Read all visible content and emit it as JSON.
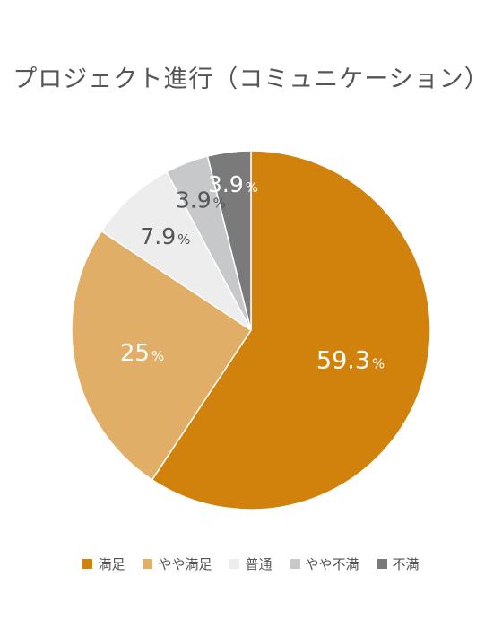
{
  "chart_data": {
    "type": "pie",
    "title": "プロジェクト進行（コミュニケーション）",
    "categories": [
      "満足",
      "やや満足",
      "普通",
      "やや不満",
      "不満"
    ],
    "values": [
      59.3,
      25,
      7.9,
      3.9,
      3.9
    ],
    "labels": [
      "59.3",
      "25",
      "7.9",
      "3.9",
      "3.9"
    ],
    "unit": "%",
    "colors": [
      "#d1820c",
      "#e0ae66",
      "#ededee",
      "#c7c8c9",
      "#7a7a7a"
    ],
    "label_colors": [
      "#ffffff",
      "#ffffff",
      "#555555",
      "#555555",
      "#ffffff"
    ],
    "legend_position": "bottom",
    "start": "top",
    "direction": "clockwise"
  }
}
